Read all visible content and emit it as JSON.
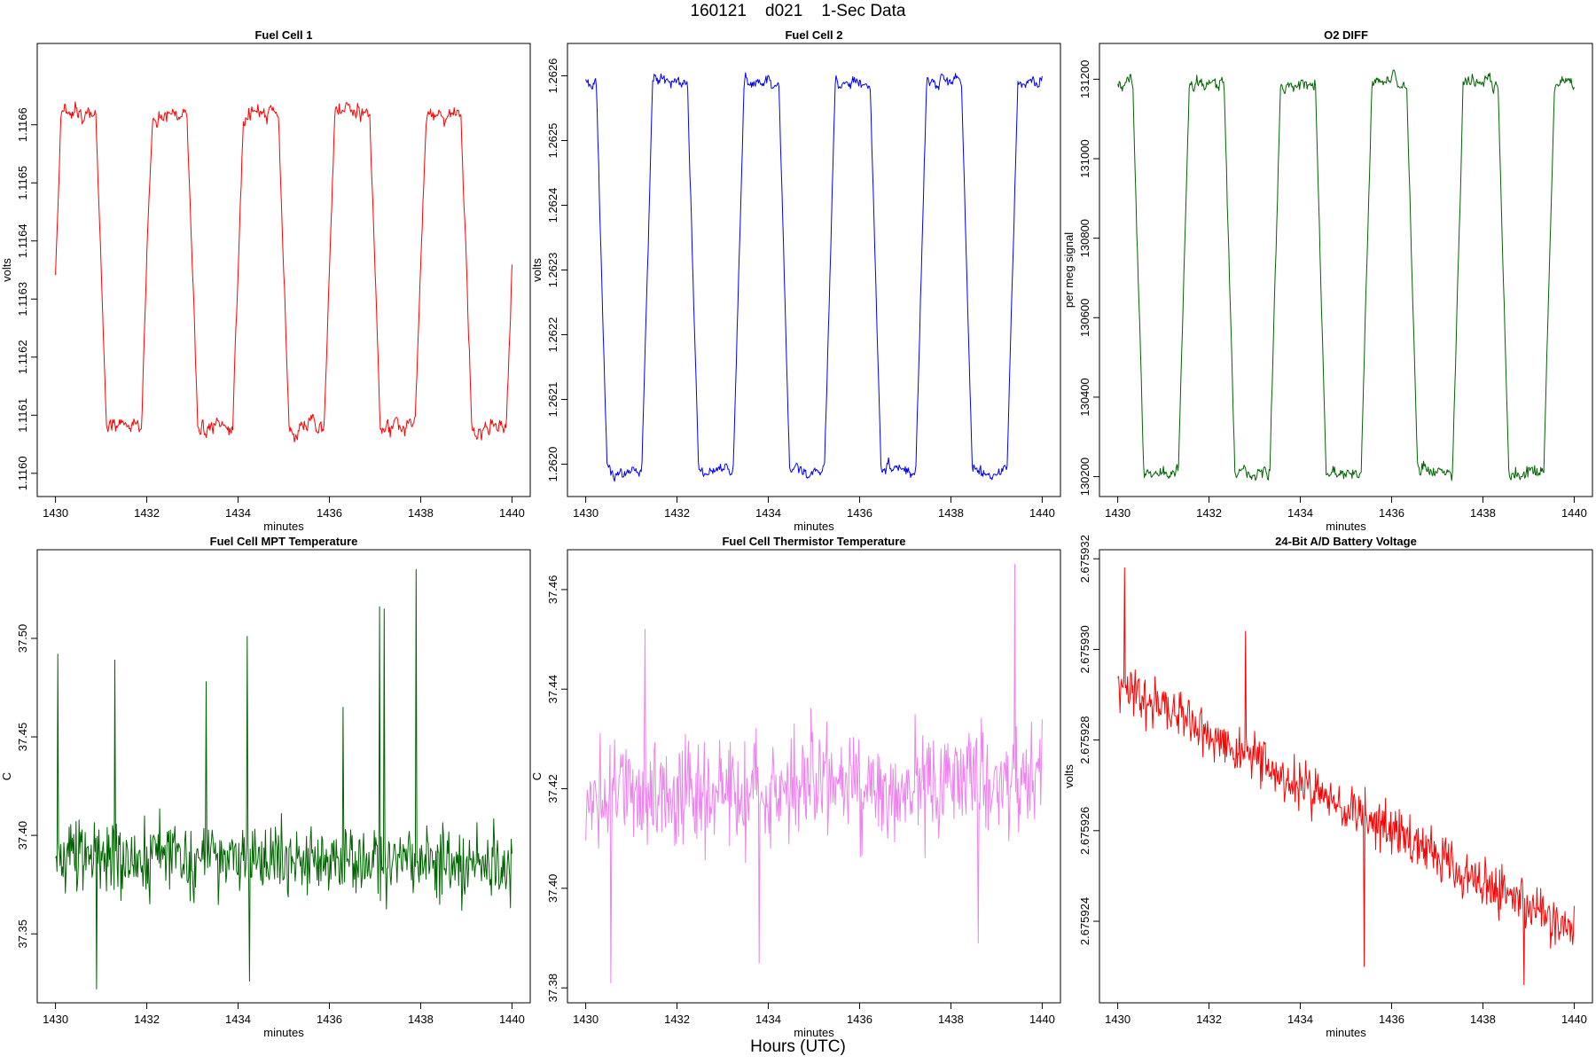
{
  "figure": {
    "title": "160121    d021    1-Sec Data",
    "xlabel": "Hours (UTC)"
  },
  "chart_data": [
    {
      "type": "line",
      "title": "Fuel Cell 1",
      "xlabel": "minutes",
      "ylabel": "volts",
      "color": "#ff0000",
      "xlim": [
        1429.6,
        1440.4
      ],
      "ylim": [
        1.11596,
        1.11674
      ],
      "xticks": [
        1430,
        1432,
        1434,
        1436,
        1438,
        1440
      ],
      "yticks": [
        1.116,
        1.1161,
        1.1162,
        1.1163,
        1.1164,
        1.1165,
        1.1166
      ],
      "ytick_labels": [
        "1.1160",
        "1.1161",
        "1.1162",
        "1.1163",
        "1.1164",
        "1.1165",
        "1.1166"
      ],
      "signal": {
        "kind": "square",
        "start": 1430.0,
        "end": 1440.0,
        "period": 2.0,
        "high_first": true,
        "high_fraction": 0.5,
        "phase": 0.0,
        "high": 1.11662,
        "low": 1.11608,
        "noise": 1.8e-05,
        "seed": 11
      }
    },
    {
      "type": "line",
      "title": "Fuel Cell 2",
      "xlabel": "minutes",
      "ylabel": "volts",
      "color": "#0000ff",
      "xlim": [
        1429.6,
        1440.4
      ],
      "ylim": [
        1.26195,
        1.26265
      ],
      "xticks": [
        1430,
        1432,
        1434,
        1436,
        1438,
        1440
      ],
      "yticks": [
        1.262,
        1.2621,
        1.2622,
        1.2623,
        1.2624,
        1.2625,
        1.2626
      ],
      "ytick_labels": [
        "1.2620",
        "1.2621",
        "1.2622",
        "1.2623",
        "1.2624",
        "1.2625",
        "1.2626"
      ],
      "signal": {
        "kind": "square",
        "start": 1430.0,
        "end": 1440.0,
        "period": 2.0,
        "high_first": false,
        "high_fraction": 0.5,
        "phase": 0.35,
        "high": 1.26259,
        "low": 1.26199,
        "noise": 1.2e-05,
        "seed": 22
      }
    },
    {
      "type": "line",
      "title": "O2 DIFF",
      "xlabel": "minutes",
      "ylabel": "per meg signal",
      "color": "#006400",
      "xlim": [
        1429.6,
        1440.4
      ],
      "ylim": [
        130150,
        131290
      ],
      "xticks": [
        1430,
        1432,
        1434,
        1436,
        1438,
        1440
      ],
      "yticks": [
        130200,
        130400,
        130600,
        130800,
        131000,
        131200
      ],
      "ytick_labels": [
        "130200",
        "130400",
        "130600",
        "130800",
        "131000",
        "131200"
      ],
      "signal": {
        "kind": "square",
        "start": 1430.0,
        "end": 1440.0,
        "period": 2.0,
        "high_first": false,
        "high_fraction": 0.5,
        "phase": 0.45,
        "high": 131190,
        "low": 130210,
        "noise": 22,
        "seed": 33
      }
    },
    {
      "type": "line",
      "title": "Fuel Cell MPT Temperature",
      "xlabel": "minutes",
      "ylabel": "C",
      "color": "#006400",
      "xlim": [
        1429.6,
        1440.4
      ],
      "ylim": [
        37.315,
        37.545
      ],
      "xticks": [
        1430,
        1432,
        1434,
        1436,
        1438,
        1440
      ],
      "yticks": [
        37.35,
        37.4,
        37.45,
        37.5
      ],
      "ytick_labels": [
        "37.35",
        "37.40",
        "37.45",
        "37.50"
      ],
      "signal": {
        "kind": "noise",
        "start": 1430.0,
        "end": 1440.0,
        "mean_start": 37.39,
        "mean_end": 37.385,
        "noise": 0.018,
        "seed": 44,
        "spikes": [
          [
            1430.05,
            37.492
          ],
          [
            1431.3,
            37.489
          ],
          [
            1433.3,
            37.478
          ],
          [
            1434.2,
            37.501
          ],
          [
            1436.3,
            37.465
          ],
          [
            1437.1,
            37.516
          ],
          [
            1437.2,
            37.515
          ],
          [
            1437.9,
            37.535
          ],
          [
            1430.9,
            37.322
          ],
          [
            1434.25,
            37.326
          ]
        ]
      }
    },
    {
      "type": "line",
      "title": "Fuel Cell Thermistor Temperature",
      "xlabel": "minutes",
      "ylabel": "C",
      "color": "#ee82ee",
      "xlim": [
        1429.6,
        1440.4
      ],
      "ylim": [
        37.377,
        37.468
      ],
      "xticks": [
        1430,
        1432,
        1434,
        1436,
        1438,
        1440
      ],
      "yticks": [
        37.38,
        37.4,
        37.42,
        37.44,
        37.46
      ],
      "ytick_labels": [
        "37.38",
        "37.40",
        "37.42",
        "37.44",
        "37.46"
      ],
      "signal": {
        "kind": "noise",
        "start": 1430.0,
        "end": 1440.0,
        "mean_start": 37.418,
        "mean_end": 37.422,
        "noise": 0.011,
        "seed": 55,
        "spikes": [
          [
            1439.4,
            37.465
          ],
          [
            1430.55,
            37.381
          ],
          [
            1433.8,
            37.385
          ],
          [
            1438.6,
            37.389
          ],
          [
            1431.3,
            37.452
          ]
        ]
      }
    },
    {
      "type": "line",
      "title": "24-Bit A/D Battery Voltage",
      "xlabel": "minutes",
      "ylabel": "volts",
      "color": "#ff0000",
      "xlim": [
        1429.6,
        1440.4
      ],
      "ylim": [
        2.6759222,
        2.6759322
      ],
      "xticks": [
        1430,
        1432,
        1434,
        1436,
        1438,
        1440
      ],
      "yticks": [
        2.675924,
        2.675926,
        2.675928,
        2.67593,
        2.675932
      ],
      "ytick_labels": [
        "2.675924",
        "2.675926",
        "2.675928",
        "2.675930",
        "2.675932"
      ],
      "signal": {
        "kind": "noise",
        "start": 1430.0,
        "end": 1440.0,
        "mean_start": 2.6759292,
        "mean_end": 2.6759238,
        "noise": 5.5e-07,
        "seed": 66,
        "spikes": [
          [
            1430.15,
            2.6759318
          ],
          [
            1432.8,
            2.6759304
          ],
          [
            1438.9,
            2.6759226
          ],
          [
            1435.4,
            2.675923
          ]
        ]
      }
    }
  ]
}
